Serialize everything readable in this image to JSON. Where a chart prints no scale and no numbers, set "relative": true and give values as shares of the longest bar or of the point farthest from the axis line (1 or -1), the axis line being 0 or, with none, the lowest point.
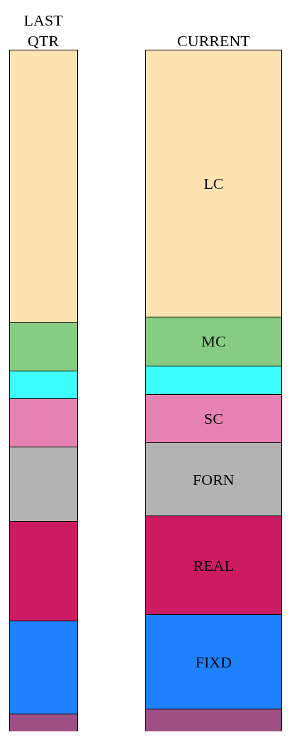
{
  "chart_data": {
    "type": "bar",
    "stacked": true,
    "relative": true,
    "legend": false,
    "tick_labels": "x",
    "categories": [
      "LAST QTR",
      "CURRENT"
    ],
    "series": [
      {
        "color": "#9e4f84",
        "values": [
          0.026,
          0.033
        ]
      },
      {
        "name": "FIXD",
        "color": "#1e82ff",
        "values": [
          0.136,
          0.138
        ]
      },
      {
        "name": "REAL",
        "color": "#cc1a63",
        "values": [
          0.146,
          0.145
        ]
      },
      {
        "name": "FORN",
        "color": "#b3b3b3",
        "values": [
          0.109,
          0.107
        ]
      },
      {
        "name": "SC",
        "color": "#e682b2",
        "values": [
          0.071,
          0.071
        ]
      },
      {
        "color": "#3dffff",
        "values": [
          0.041,
          0.042
        ]
      },
      {
        "name": "MC",
        "color": "#86cc82",
        "values": [
          0.07,
          0.072
        ]
      },
      {
        "name": "LC",
        "color": "#fde3b2",
        "values": [
          0.401,
          0.392
        ]
      }
    ]
  }
}
